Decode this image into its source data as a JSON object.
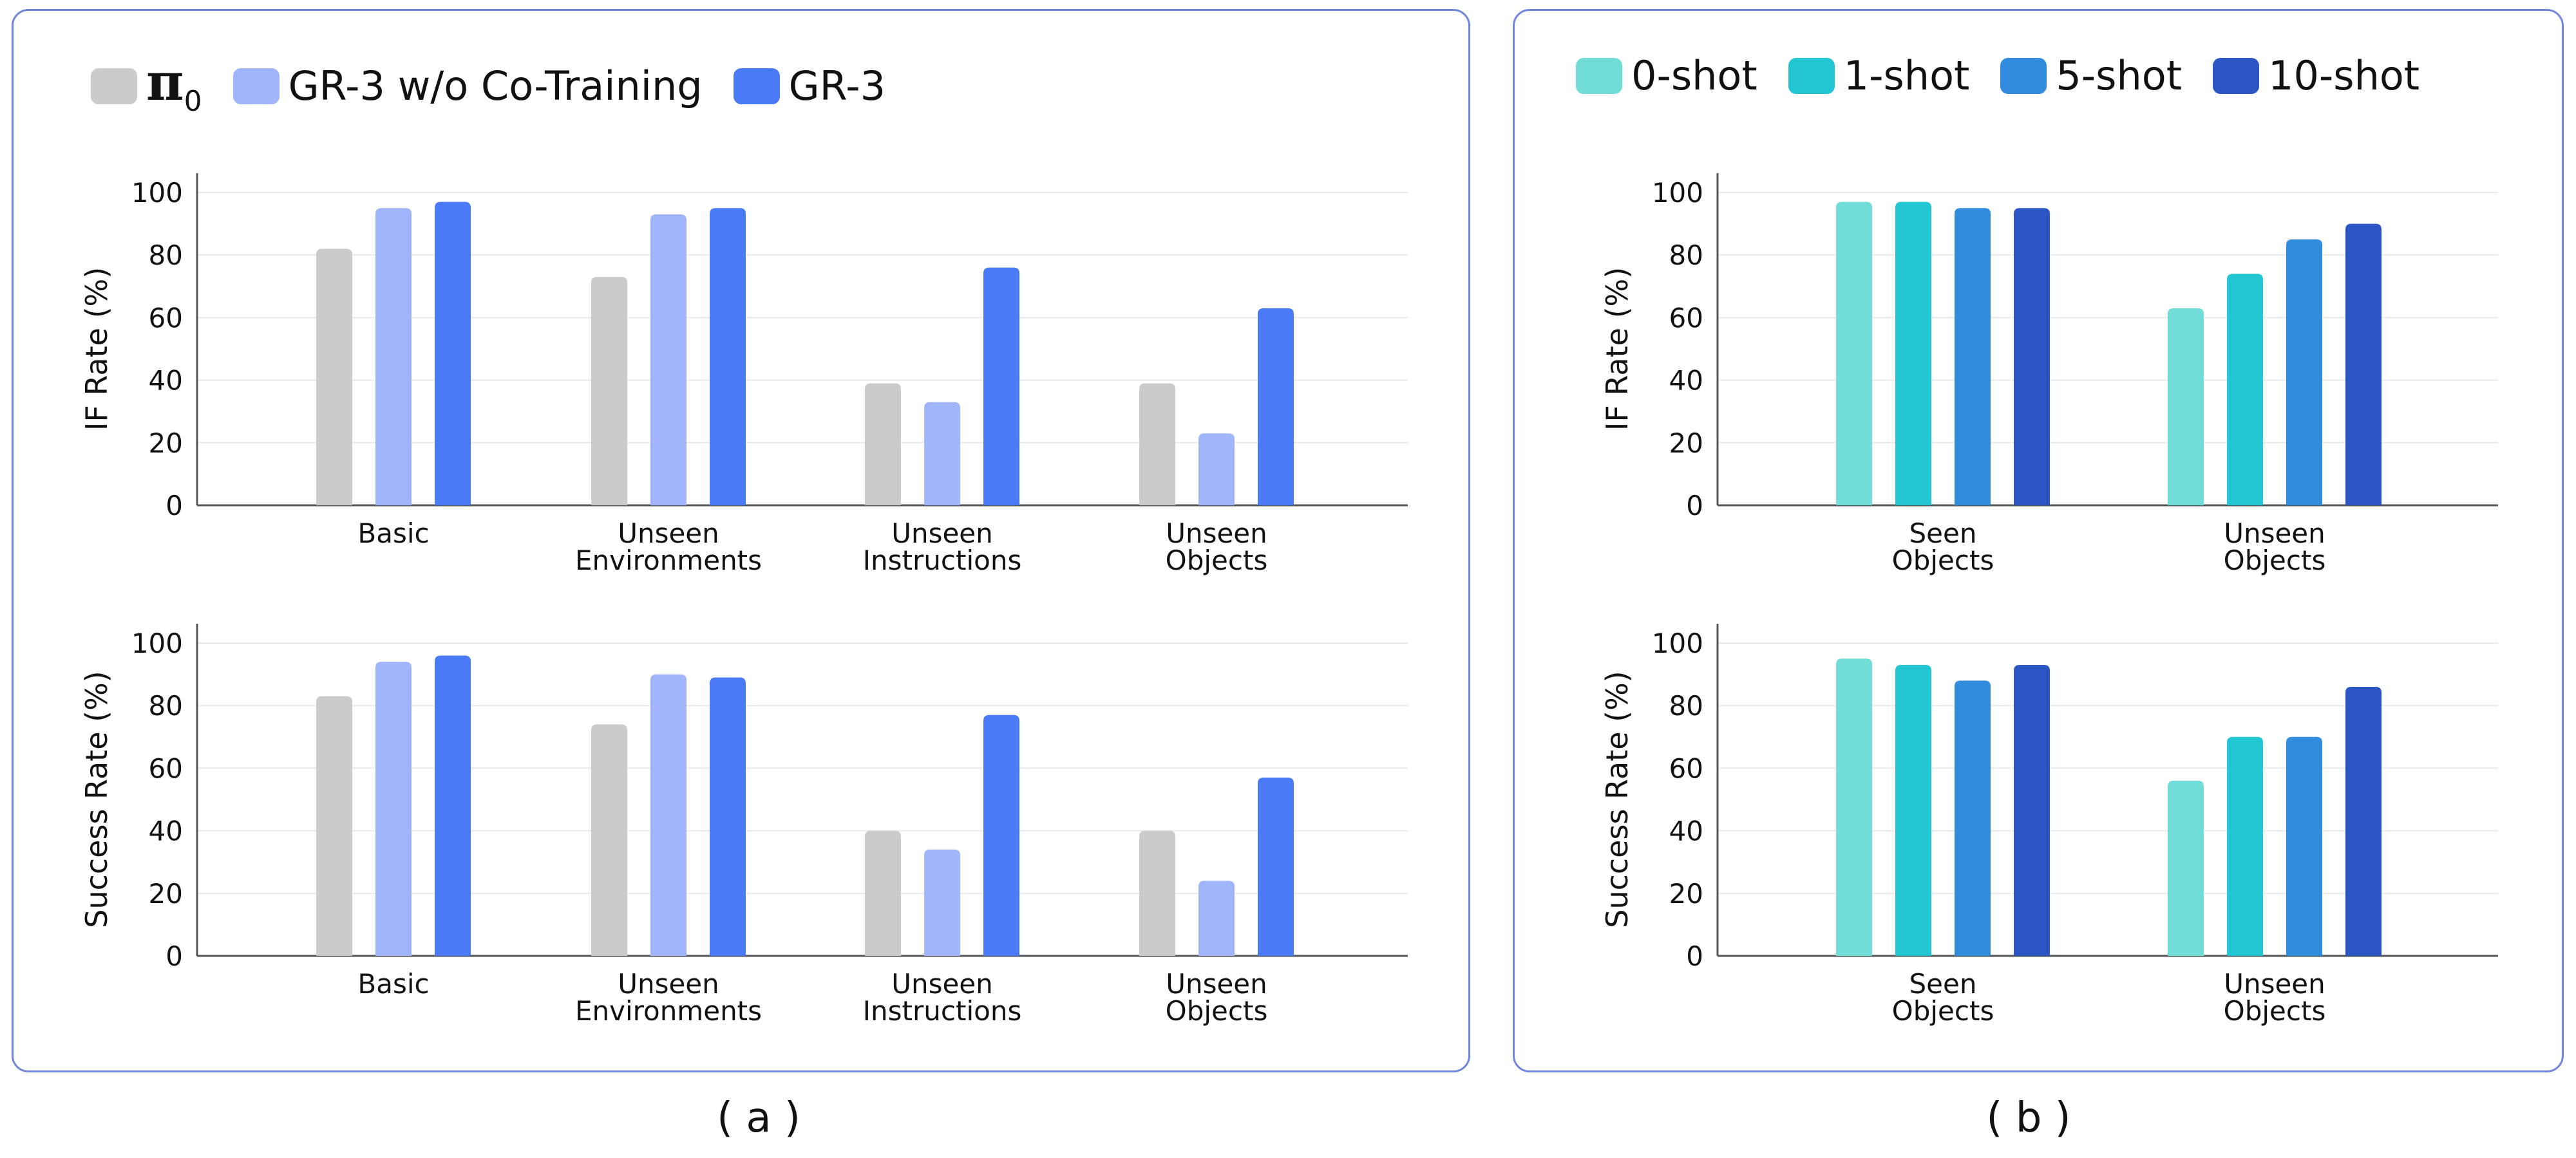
{
  "colors": {
    "pi0": "#cbcbcb",
    "gr3_wo_cotraining": "#a0b5fb",
    "gr3": "#4a7af5",
    "shot0": "#72ddd6",
    "shot1": "#22c6d2",
    "shot5": "#318cde",
    "shot10": "#2a55c3",
    "axis": "#555555",
    "grid": "#e9e9e9",
    "panel_border": "#6f86dc"
  },
  "captions": {
    "a": "( a )",
    "b": "( b )"
  },
  "legend_a": [
    {
      "label": "π",
      "sub": "0",
      "color": "#cbcbcb"
    },
    {
      "label": "GR-3 w/o Co-Training",
      "color": "#a0b5fb"
    },
    {
      "label": "GR-3",
      "color": "#4a7af5"
    }
  ],
  "legend_b": [
    {
      "label": "0-shot",
      "color": "#72ddd6"
    },
    {
      "label": "1-shot",
      "color": "#22c6d2"
    },
    {
      "label": "5-shot",
      "color": "#318cde"
    },
    {
      "label": "10-shot",
      "color": "#2a55c3"
    }
  ],
  "chart_data": [
    {
      "id": "a-if",
      "type": "bar",
      "ylabel": "IF Rate (%)",
      "ylim": [
        0,
        100
      ],
      "yticks": [
        0,
        20,
        40,
        60,
        80,
        100
      ],
      "grid": true,
      "categories": [
        [
          "Basic"
        ],
        [
          "Unseen",
          "Environments"
        ],
        [
          "Unseen",
          "Instructions"
        ],
        [
          "Unseen",
          "Objects"
        ]
      ],
      "series": [
        {
          "name": "π0",
          "color": "#cbcbcb",
          "values": [
            82,
            73,
            39,
            39
          ]
        },
        {
          "name": "GR-3 w/o Co-Training",
          "color": "#a0b5fb",
          "values": [
            95,
            93,
            33,
            23
          ]
        },
        {
          "name": "GR-3",
          "color": "#4a7af5",
          "values": [
            97,
            95,
            76,
            63
          ]
        }
      ]
    },
    {
      "id": "a-sr",
      "type": "bar",
      "ylabel": "Success Rate (%)",
      "ylim": [
        0,
        100
      ],
      "yticks": [
        0,
        20,
        40,
        60,
        80,
        100
      ],
      "grid": true,
      "categories": [
        [
          "Basic"
        ],
        [
          "Unseen",
          "Environments"
        ],
        [
          "Unseen",
          "Instructions"
        ],
        [
          "Unseen",
          "Objects"
        ]
      ],
      "series": [
        {
          "name": "π0",
          "color": "#cbcbcb",
          "values": [
            83,
            74,
            40,
            40
          ]
        },
        {
          "name": "GR-3 w/o Co-Training",
          "color": "#a0b5fb",
          "values": [
            94,
            90,
            34,
            24
          ]
        },
        {
          "name": "GR-3",
          "color": "#4a7af5",
          "values": [
            96,
            89,
            77,
            57
          ]
        }
      ]
    },
    {
      "id": "b-if",
      "type": "bar",
      "ylabel": "IF Rate (%)",
      "ylim": [
        0,
        100
      ],
      "yticks": [
        0,
        20,
        40,
        60,
        80,
        100
      ],
      "grid": true,
      "categories": [
        [
          "Seen",
          "Objects"
        ],
        [
          "Unseen",
          "Objects"
        ]
      ],
      "series": [
        {
          "name": "0-shot",
          "color": "#72ddd6",
          "values": [
            97,
            63
          ]
        },
        {
          "name": "1-shot",
          "color": "#22c6d2",
          "values": [
            97,
            74
          ]
        },
        {
          "name": "5-shot",
          "color": "#318cde",
          "values": [
            95,
            85
          ]
        },
        {
          "name": "10-shot",
          "color": "#2a55c3",
          "values": [
            95,
            90
          ]
        }
      ]
    },
    {
      "id": "b-sr",
      "type": "bar",
      "ylabel": "Success Rate (%)",
      "ylim": [
        0,
        100
      ],
      "yticks": [
        0,
        20,
        40,
        60,
        80,
        100
      ],
      "grid": true,
      "categories": [
        [
          "Seen",
          "Objects"
        ],
        [
          "Unseen",
          "Objects"
        ]
      ],
      "series": [
        {
          "name": "0-shot",
          "color": "#72ddd6",
          "values": [
            95,
            56
          ]
        },
        {
          "name": "1-shot",
          "color": "#22c6d2",
          "values": [
            93,
            70
          ]
        },
        {
          "name": "5-shot",
          "color": "#318cde",
          "values": [
            88,
            70
          ]
        },
        {
          "name": "10-shot",
          "color": "#2a55c3",
          "values": [
            93,
            86
          ]
        }
      ]
    }
  ]
}
